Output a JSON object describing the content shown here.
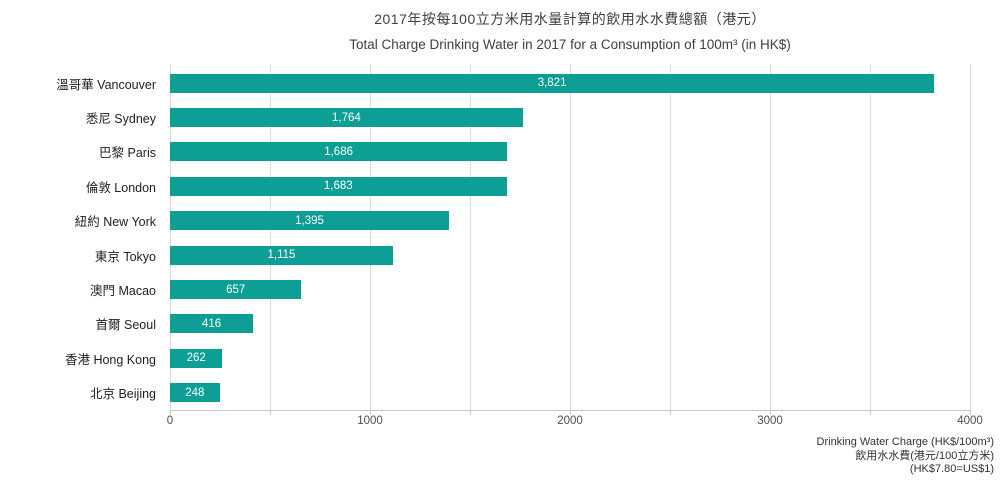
{
  "title": {
    "zh": "2017年按每100立方米用水量計算的飲用水水費總額（港元）",
    "en": "Total Charge Drinking Water in 2017 for a Consumption of 100m³ (in HK$)"
  },
  "chart_data": {
    "type": "bar",
    "orientation": "horizontal",
    "categories": [
      "溫哥華 Vancouver",
      "悉尼 Sydney",
      "巴黎 Paris",
      "倫敦 London",
      "紐約 New York",
      "東京 Tokyo",
      "澳門 Macao",
      "首爾 Seoul",
      "香港 Hong Kong",
      "北京 Beijing"
    ],
    "values": [
      3821,
      1764,
      1686,
      1683,
      1395,
      1115,
      657,
      416,
      262,
      248
    ],
    "value_labels": [
      "3,821",
      "1,764",
      "1,686",
      "1,683",
      "1,395",
      "1,115",
      "657",
      "416",
      "262",
      "248"
    ],
    "title": "Total Charge Drinking Water in 2017 for a Consumption of 100m³ (in HK$)",
    "xlabel": "Drinking Water Charge (HK$/100m³)",
    "ylabel": "",
    "xlim": [
      0,
      4000
    ],
    "x_ticks": [
      0,
      1000,
      2000,
      3000,
      4000
    ],
    "gridline_interval": 500,
    "grid": true,
    "legend": "none",
    "bar_color": "#0d9e96",
    "value_label_color": "#ffffff"
  },
  "footnote": {
    "line1": "Drinking Water Charge (HK$/100m³)",
    "line2": "飲用水水費(港元/100立方米)",
    "line3": "(HK$7.80=US$1)"
  }
}
